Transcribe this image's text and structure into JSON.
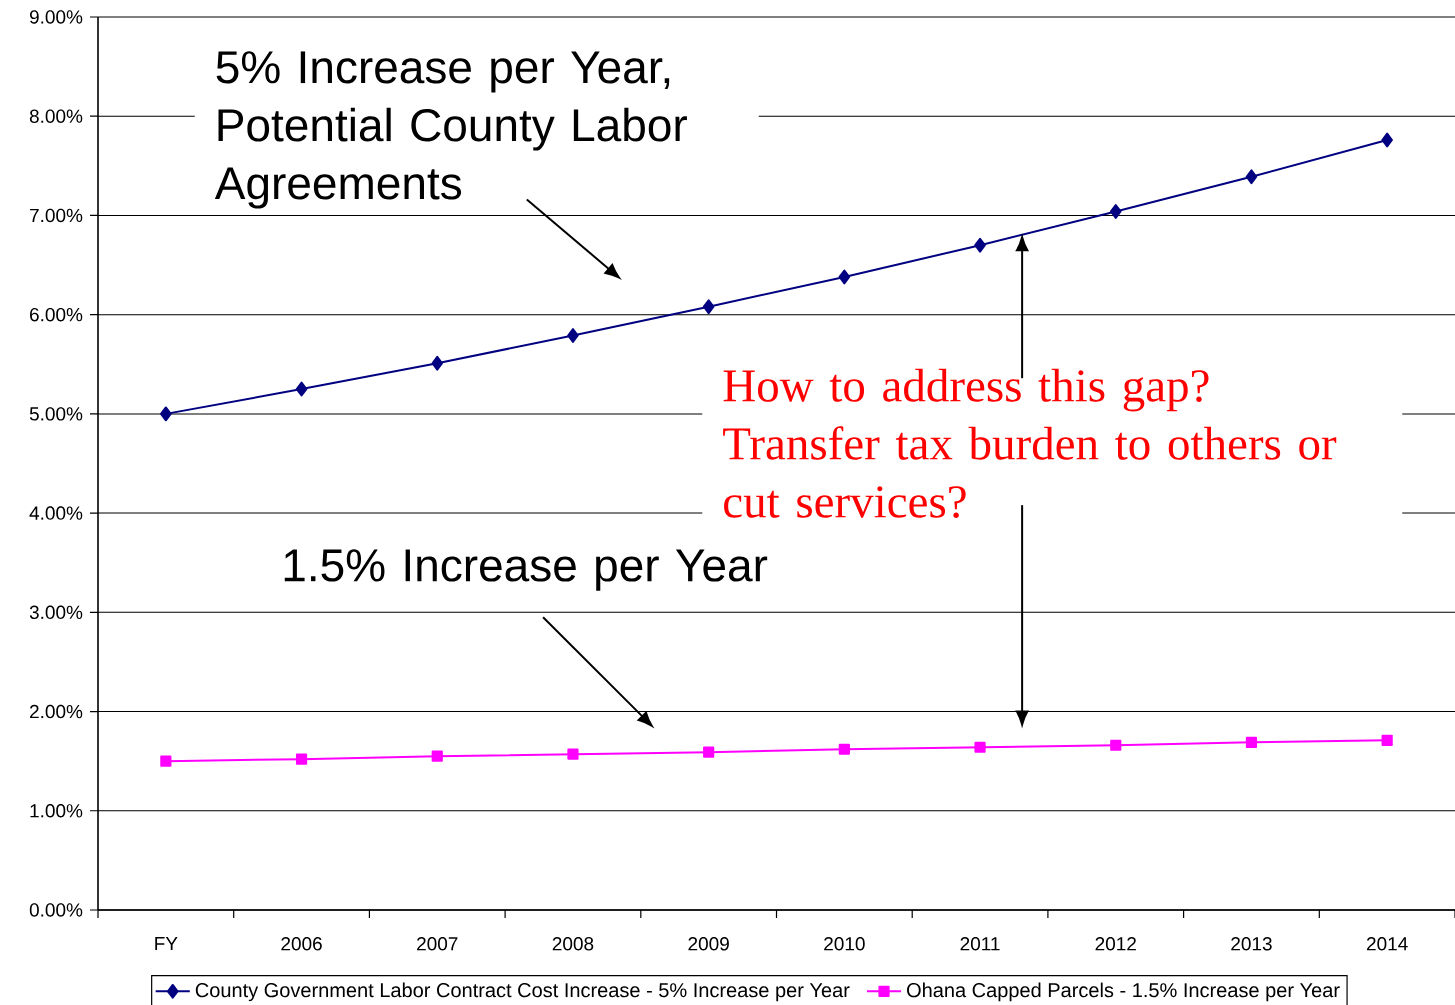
{
  "chart_data": {
    "type": "line",
    "categories": [
      "FY",
      "2006",
      "2007",
      "2008",
      "2009",
      "2010",
      "2011",
      "2012",
      "2013",
      "2014"
    ],
    "series": [
      {
        "name": "County Government Labor Contract Cost Increase - 5% Increase per Year",
        "color": "#000080",
        "marker": "diamond",
        "values": [
          5.0,
          5.25,
          5.51,
          5.79,
          6.08,
          6.38,
          6.7,
          7.04,
          7.39,
          7.76
        ]
      },
      {
        "name": "Ohana Capped Parcels - 1.5% Increase per Year",
        "color": "#ff00ff",
        "marker": "square",
        "values": [
          1.5,
          1.52,
          1.55,
          1.57,
          1.59,
          1.62,
          1.64,
          1.66,
          1.69,
          1.71
        ]
      }
    ],
    "ylim": [
      0,
      9
    ],
    "yticks": [
      {
        "value": 0,
        "label": "0.00%"
      },
      {
        "value": 1,
        "label": "1.00%"
      },
      {
        "value": 2,
        "label": "2.00%"
      },
      {
        "value": 3,
        "label": "3.00%"
      },
      {
        "value": 4,
        "label": "4.00%"
      },
      {
        "value": 5,
        "label": "5.00%"
      },
      {
        "value": 6,
        "label": "6.00%"
      },
      {
        "value": 7,
        "label": "7.00%"
      },
      {
        "value": 8,
        "label": "8.00%"
      },
      {
        "value": 9,
        "label": "9.00%"
      }
    ],
    "grid": "y",
    "legend": "bottom",
    "line_style": "solid",
    "annotations": [
      "5% Increase per Year, Potential County Labor Agreements",
      "1.5% Increase per Year",
      "How to address this gap? Transfer tax burden to others or cut services?"
    ]
  }
}
